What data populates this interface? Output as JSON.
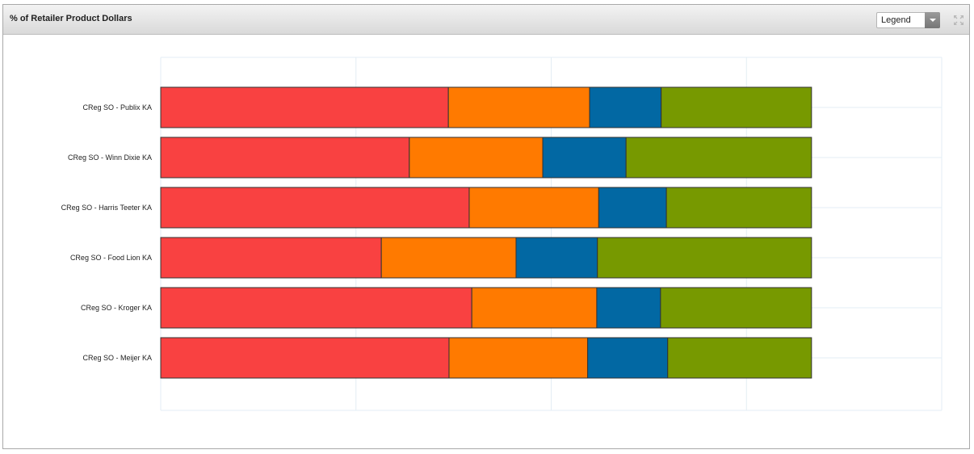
{
  "header": {
    "title": "% of Retailer Product Dollars",
    "legend_select": "Legend"
  },
  "icons": {
    "maximize": "maximize-icon",
    "dropdown": "chevron-down-icon"
  },
  "chart_data": {
    "type": "bar",
    "orientation": "horizontal",
    "stacked": true,
    "percent": true,
    "title": "% of Retailer Product Dollars",
    "categories": [
      "CReg SO - Publix KA",
      "CReg SO - Winn Dixie KA",
      "CReg SO - Harris Teeter KA",
      "CReg SO - Food Lion KA",
      "CReg SO - Kroger KA",
      "CReg SO - Meijer KA"
    ],
    "series": [
      {
        "color": "#f94141",
        "values": [
          44.2,
          38.2,
          47.4,
          33.9,
          47.8,
          44.3
        ]
      },
      {
        "color": "#ff7a00",
        "values": [
          21.7,
          20.5,
          19.9,
          20.7,
          19.2,
          21.3
        ]
      },
      {
        "color": "#0268a3",
        "values": [
          11.0,
          12.8,
          10.4,
          12.5,
          9.8,
          12.3
        ]
      },
      {
        "color": "#779900",
        "values": [
          23.1,
          28.5,
          22.3,
          32.9,
          23.2,
          22.1
        ]
      }
    ],
    "xlim": [
      0,
      120
    ],
    "grid": true,
    "legend": "hidden"
  }
}
